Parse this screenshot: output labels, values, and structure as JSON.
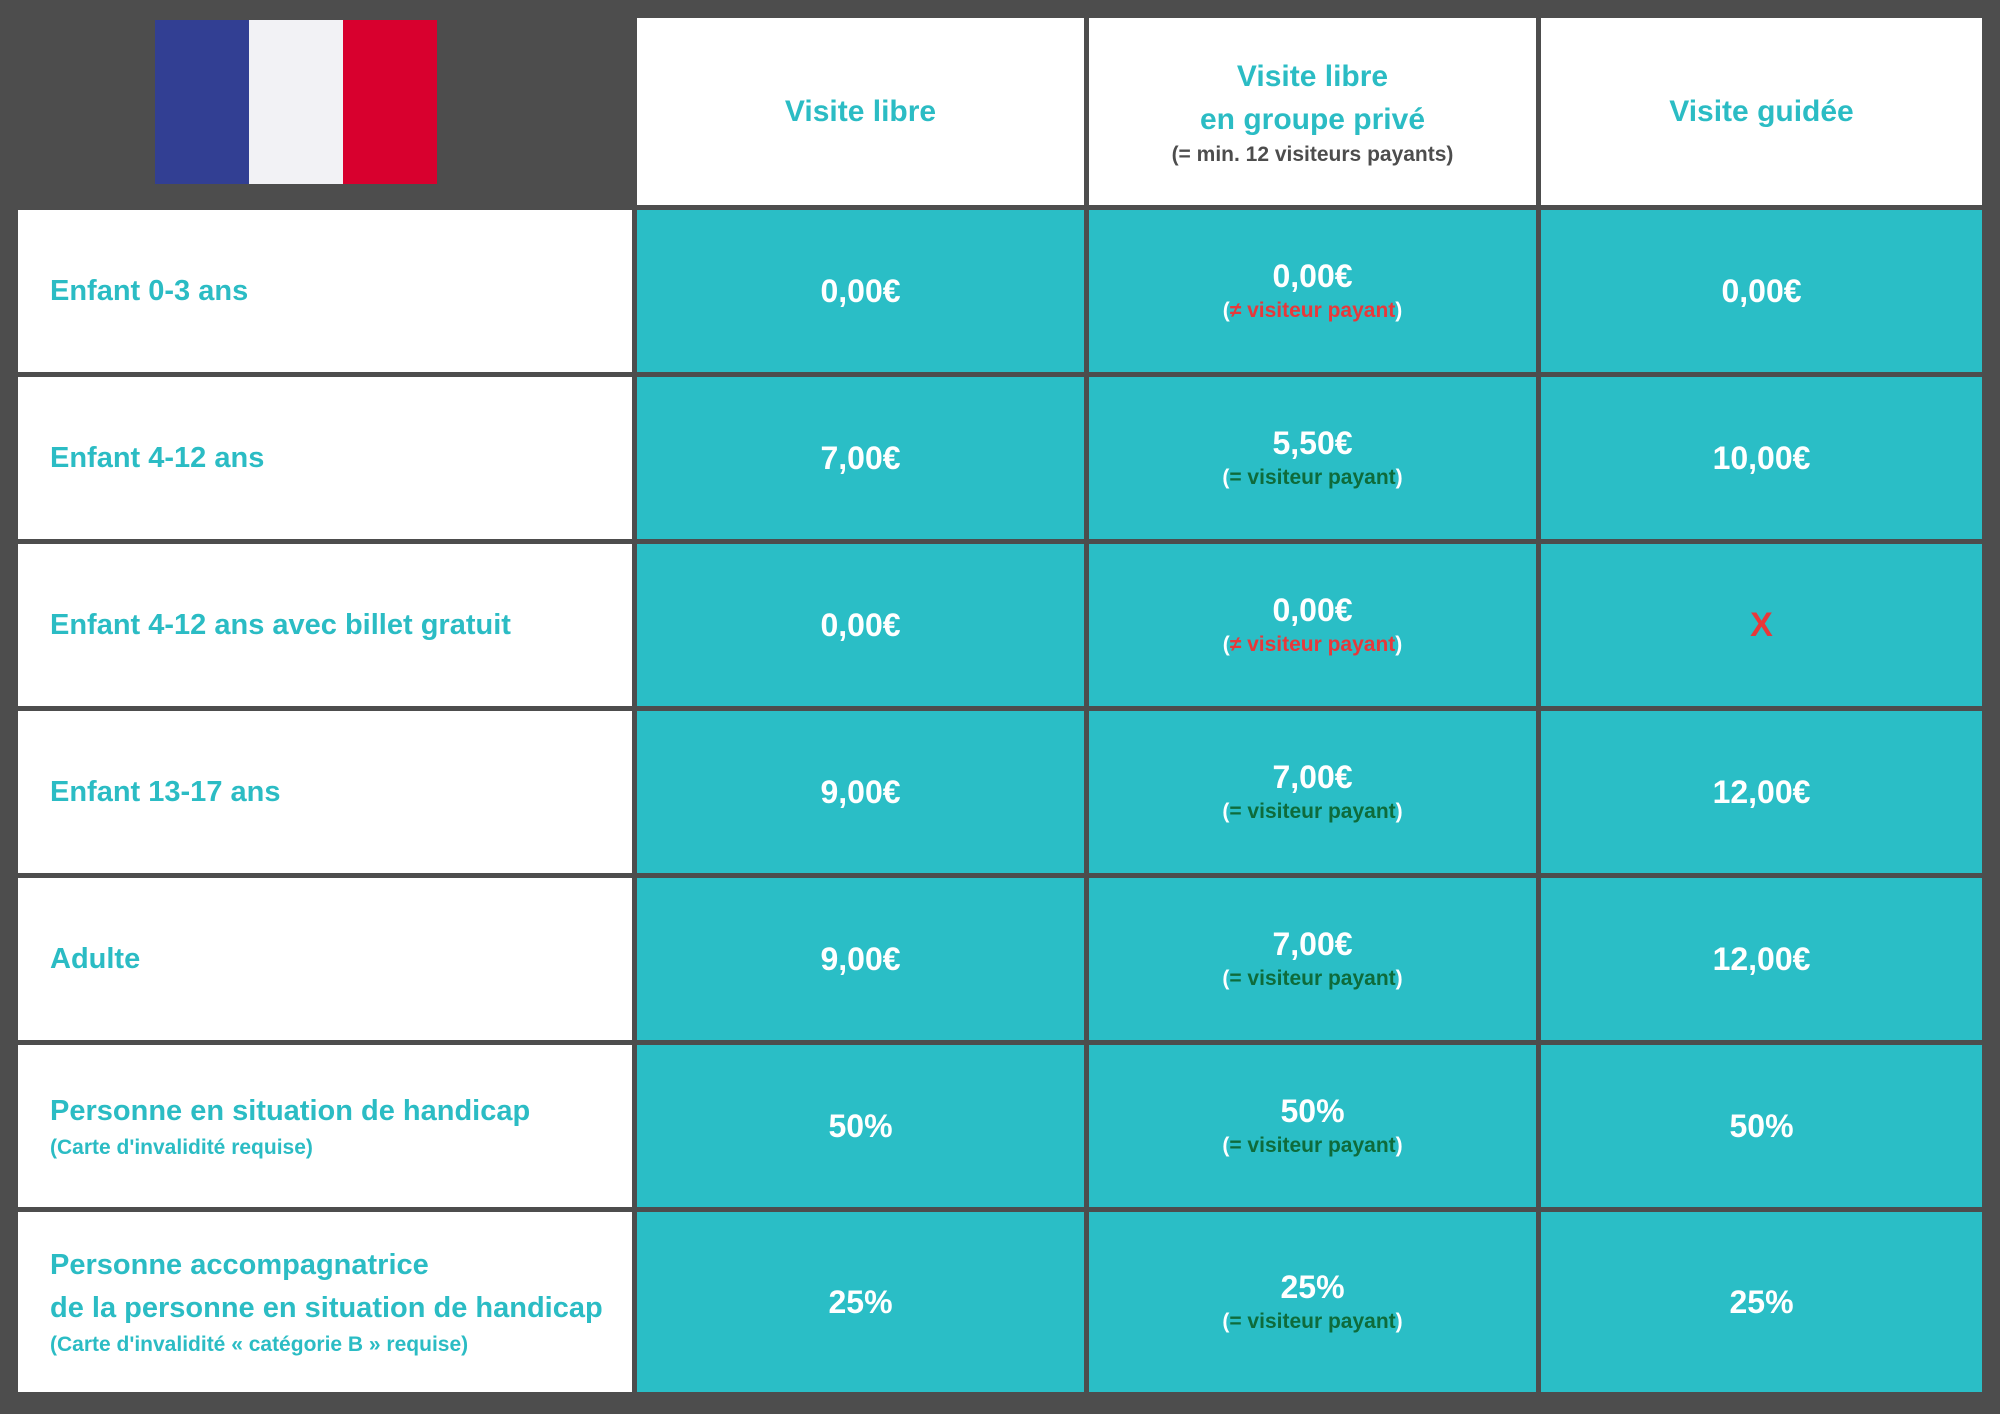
{
  "flag": {
    "colors": [
      "#323f93",
      "#f2f2f5",
      "#d8002e"
    ],
    "icon": "french-flag"
  },
  "headers": [
    {
      "lines": [
        "Visite libre"
      ],
      "note": ""
    },
    {
      "lines": [
        "Visite libre",
        "en groupe privé"
      ],
      "note": "(= min. 12 visiteurs payants)"
    },
    {
      "lines": [
        "Visite guidée"
      ],
      "note": ""
    }
  ],
  "rows": [
    {
      "label": [
        "Enfant 0-3 ans"
      ],
      "sub": "",
      "libre": "0,00€",
      "groupe": {
        "value": "0,00€",
        "note_open": "(",
        "note_text": "≠ visiteur payant",
        "note_close": ")",
        "status": "no"
      },
      "guidee": "0,00€"
    },
    {
      "label": [
        "Enfant 4-12 ans"
      ],
      "sub": "",
      "libre": "7,00€",
      "groupe": {
        "value": "5,50€",
        "note_open": "(",
        "note_text": "= visiteur payant",
        "note_close": ")",
        "status": "ok"
      },
      "guidee": "10,00€"
    },
    {
      "label": [
        "Enfant 4-12 ans avec billet gratuit"
      ],
      "sub": "",
      "libre": "0,00€",
      "groupe": {
        "value": "0,00€",
        "note_open": "(",
        "note_text": "≠ visiteur payant",
        "note_close": ")",
        "status": "no"
      },
      "guidee": "X"
    },
    {
      "label": [
        "Enfant 13-17 ans"
      ],
      "sub": "",
      "libre": "9,00€",
      "groupe": {
        "value": "7,00€",
        "note_open": "(",
        "note_text": "= visiteur payant",
        "note_close": ")",
        "status": "ok"
      },
      "guidee": "12,00€"
    },
    {
      "label": [
        "Adulte"
      ],
      "sub": "",
      "libre": "9,00€",
      "groupe": {
        "value": "7,00€",
        "note_open": "(",
        "note_text": "= visiteur payant",
        "note_close": ")",
        "status": "ok"
      },
      "guidee": "12,00€"
    },
    {
      "label": [
        "Personne en situation de handicap"
      ],
      "sub": "(Carte d'invalidité requise)",
      "libre": "50%",
      "groupe": {
        "value": "50%",
        "note_open": "(",
        "note_text": "= visiteur payant",
        "note_close": ")",
        "status": "ok"
      },
      "guidee": "50%"
    },
    {
      "label": [
        "Personne accompagnatrice",
        "de la personne en situation de handicap"
      ],
      "sub": "(Carte d'invalidité « catégorie B » requise)",
      "libre": "25%",
      "groupe": {
        "value": "25%",
        "note_open": "(",
        "note_text": "= visiteur payant",
        "note_close": ")",
        "status": "ok"
      },
      "guidee": "25%"
    }
  ]
}
